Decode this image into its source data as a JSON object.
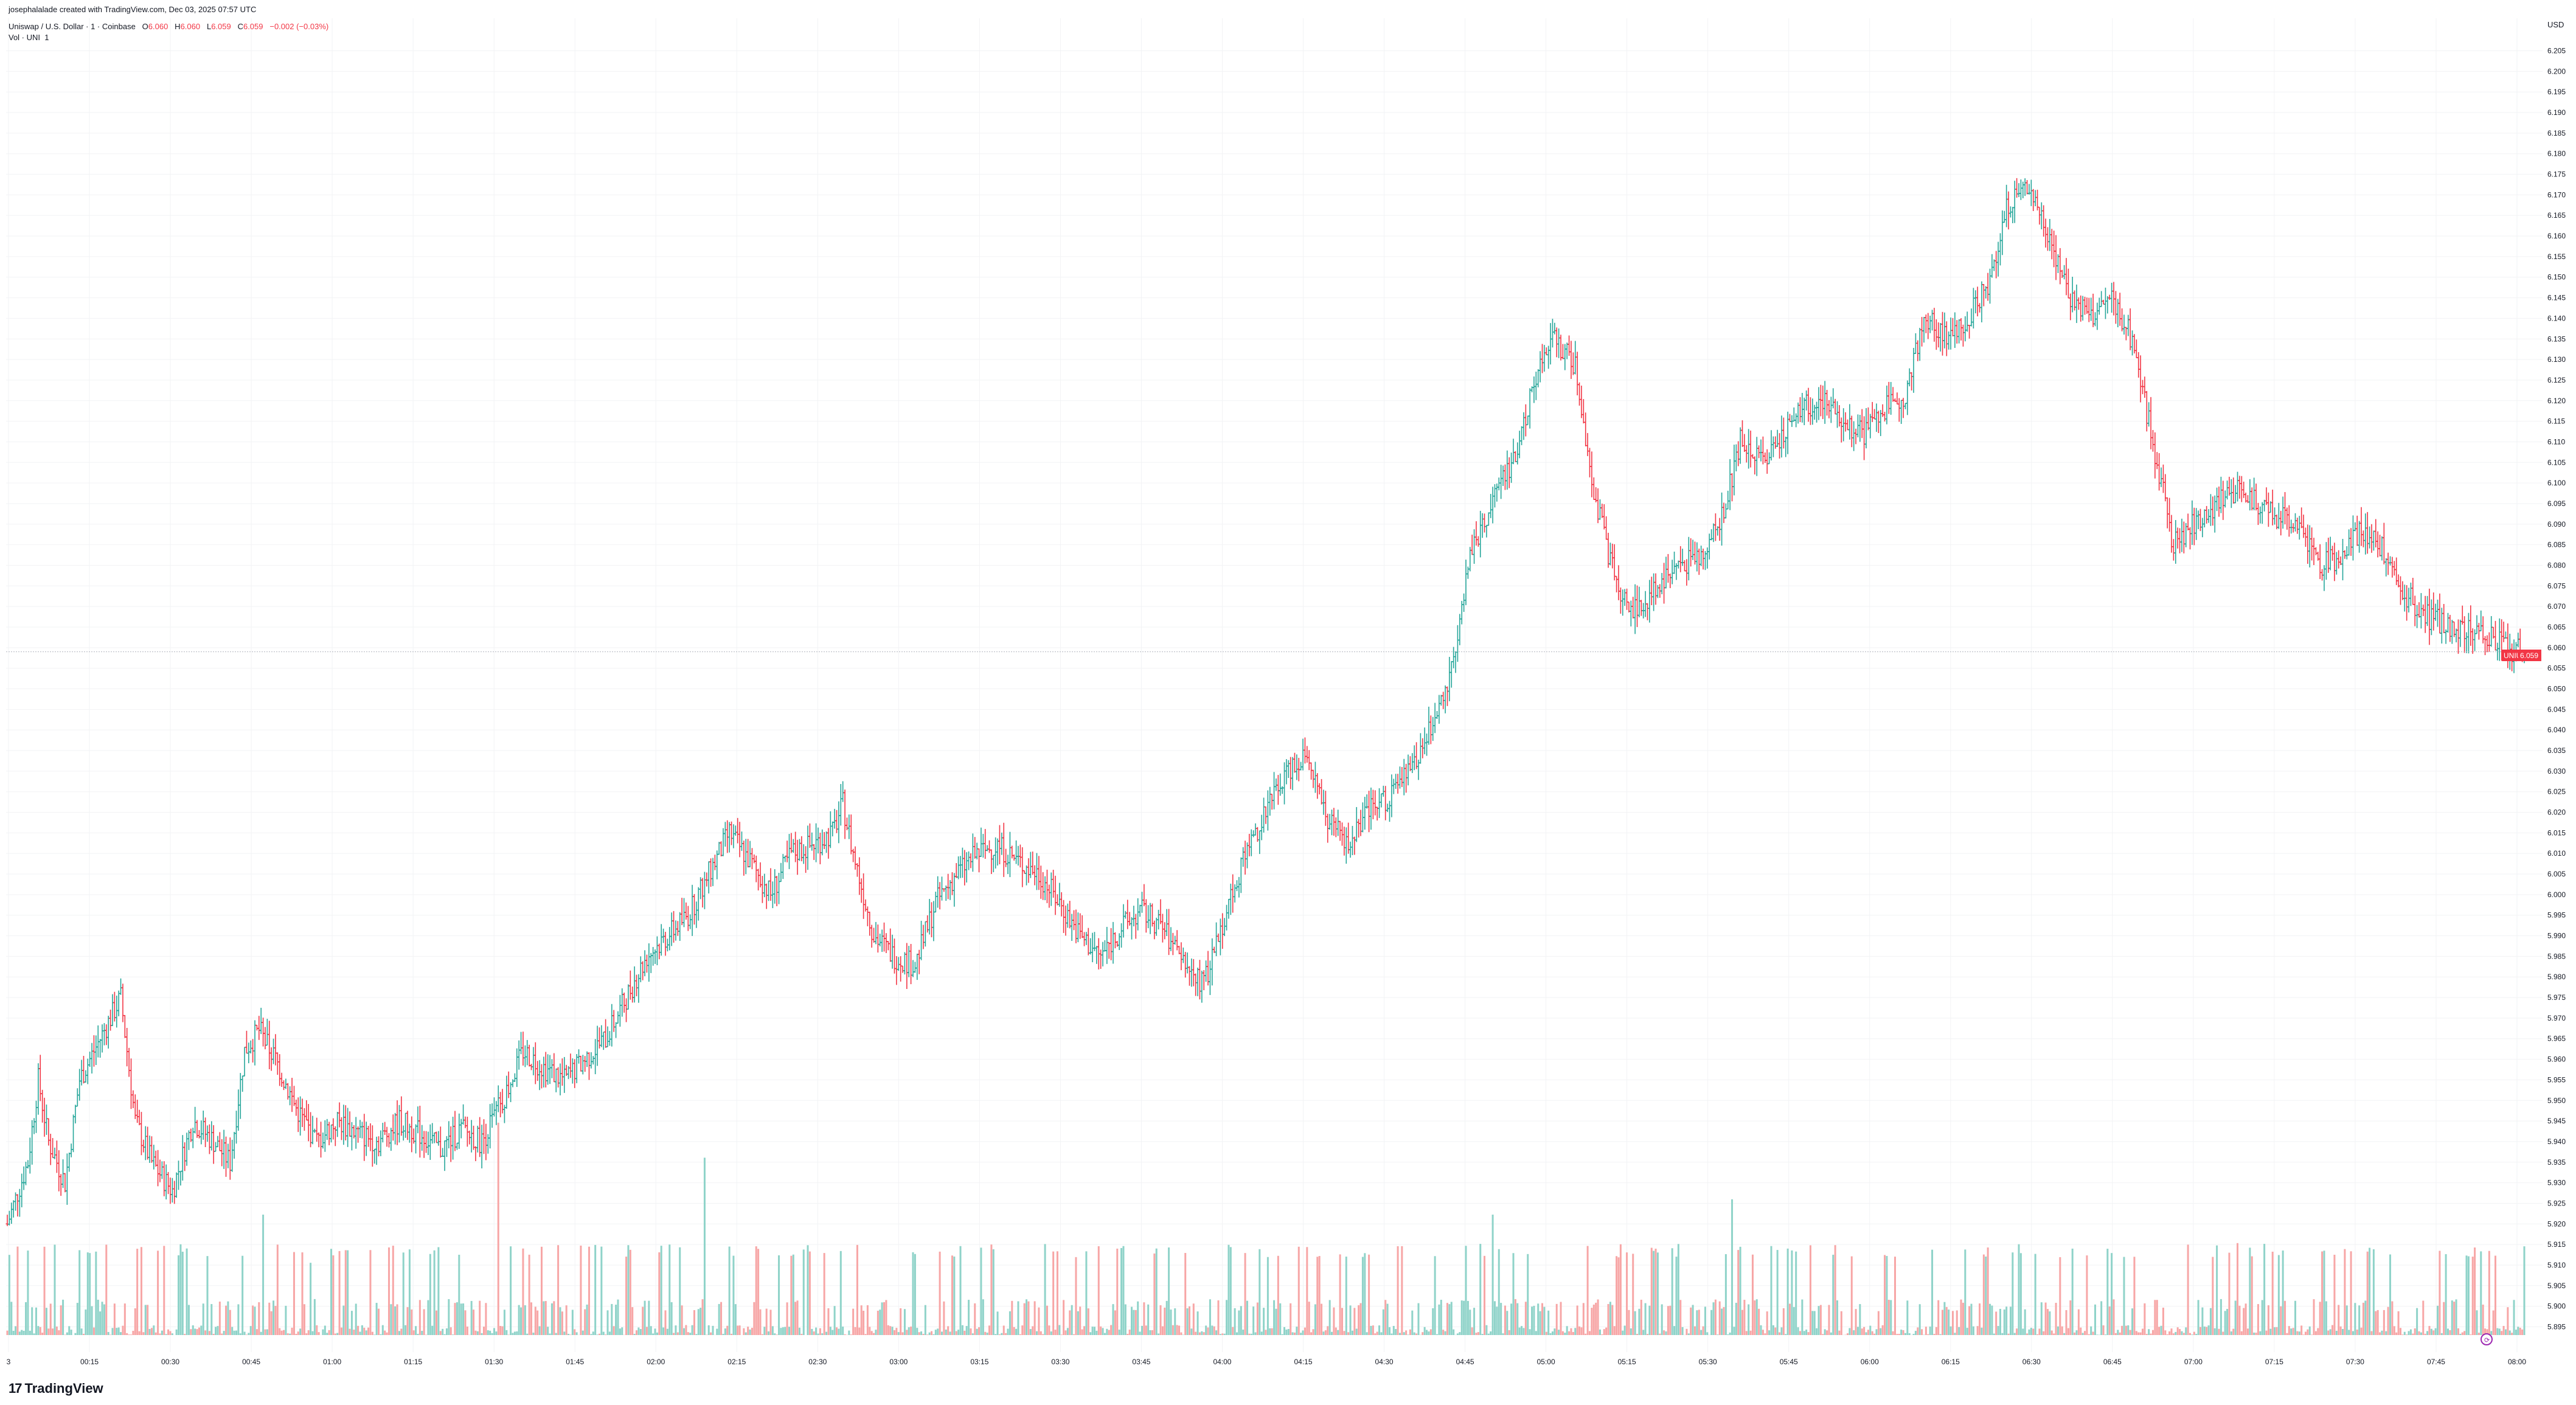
{
  "credit": "josephalalade created with TradingView.com, Dec 03, 2025 07:57 UTC",
  "legend": {
    "symbol": "Uniswap / U.S. Dollar · 1 · Coinbase",
    "o_label": "O",
    "o": "6.060",
    "h_label": "H",
    "h": "6.060",
    "l_label": "L",
    "l": "6.059",
    "c_label": "C",
    "c": "6.059",
    "change": "−0.002 (−0.03%)"
  },
  "volume_label": "Vol · UNI",
  "volume_value": "1",
  "brand": "TradingView",
  "brand_mark": "17",
  "price_tag": {
    "symbol": "UNIUSD",
    "price": "6.059"
  },
  "colors": {
    "up": "#26a69a",
    "down": "#f23645",
    "vol_up": "#8fd3c9",
    "vol_down": "#f7a6a6",
    "grid": "#f2f3f5",
    "text": "#131722"
  },
  "chart_data": {
    "type": "bar",
    "subtype": "ohlc",
    "currency": "USD",
    "y_ticks": [
      "6.205",
      "6.200",
      "6.195",
      "6.190",
      "6.185",
      "6.180",
      "6.175",
      "6.170",
      "6.165",
      "6.160",
      "6.155",
      "6.150",
      "6.145",
      "6.140",
      "6.135",
      "6.130",
      "6.125",
      "6.120",
      "6.115",
      "6.110",
      "6.105",
      "6.100",
      "6.095",
      "6.090",
      "6.085",
      "6.080",
      "6.075",
      "6.070",
      "6.065",
      "6.060",
      "6.055",
      "6.050",
      "6.045",
      "6.040",
      "6.035",
      "6.030",
      "6.025",
      "6.020",
      "6.015",
      "6.010",
      "6.005",
      "6.000",
      "5.995",
      "5.990",
      "5.985",
      "5.980",
      "5.975",
      "5.970",
      "5.965",
      "5.960",
      "5.955",
      "5.950",
      "5.945",
      "5.940",
      "5.935",
      "5.930",
      "5.925",
      "5.920",
      "5.915",
      "5.910",
      "5.905",
      "5.900",
      "5.895"
    ],
    "x_ticks": [
      "3",
      "00:15",
      "00:30",
      "00:45",
      "01:00",
      "01:15",
      "01:30",
      "01:45",
      "02:00",
      "02:15",
      "02:30",
      "03:00",
      "03:15",
      "03:30",
      "03:45",
      "04:00",
      "04:15",
      "04:30",
      "04:45",
      "05:00",
      "05:15",
      "05:30",
      "05:45",
      "06:00",
      "06:15",
      "06:30",
      "06:45",
      "07:00",
      "07:15",
      "07:30",
      "07:45",
      "08:00"
    ],
    "ylim": [
      5.893,
      6.207
    ],
    "last_price": 6.059,
    "grid": true,
    "price_path": [
      [
        0,
        5.92
      ],
      [
        10,
        5.935
      ],
      [
        15,
        5.955
      ],
      [
        20,
        5.94
      ],
      [
        28,
        5.93
      ],
      [
        35,
        5.955
      ],
      [
        45,
        5.965
      ],
      [
        55,
        5.975
      ],
      [
        62,
        5.945
      ],
      [
        70,
        5.935
      ],
      [
        80,
        5.928
      ],
      [
        90,
        5.945
      ],
      [
        100,
        5.94
      ],
      [
        108,
        5.935
      ],
      [
        115,
        5.962
      ],
      [
        122,
        5.967
      ],
      [
        130,
        5.96
      ],
      [
        140,
        5.948
      ],
      [
        150,
        5.94
      ],
      [
        160,
        5.945
      ],
      [
        170,
        5.942
      ],
      [
        180,
        5.94
      ],
      [
        190,
        5.945
      ],
      [
        200,
        5.942
      ],
      [
        210,
        5.938
      ],
      [
        220,
        5.943
      ],
      [
        230,
        5.94
      ],
      [
        240,
        5.95
      ],
      [
        250,
        5.962
      ],
      [
        260,
        5.958
      ],
      [
        270,
        5.955
      ],
      [
        280,
        5.96
      ],
      [
        290,
        5.965
      ],
      [
        300,
        5.975
      ],
      [
        310,
        5.985
      ],
      [
        320,
        5.99
      ],
      [
        330,
        5.995
      ],
      [
        340,
        6.005
      ],
      [
        350,
        6.015
      ],
      [
        360,
        6.008
      ],
      [
        370,
        6.0
      ],
      [
        380,
        6.01
      ],
      [
        390,
        6.012
      ],
      [
        400,
        6.015
      ],
      [
        405,
        6.022
      ],
      [
        410,
        6.01
      ],
      [
        420,
        5.99
      ],
      [
        430,
        5.985
      ],
      [
        440,
        5.983
      ],
      [
        450,
        5.998
      ],
      [
        460,
        6.005
      ],
      [
        470,
        6.01
      ],
      [
        480,
        6.012
      ],
      [
        490,
        6.008
      ],
      [
        500,
        6.005
      ],
      [
        510,
        5.998
      ],
      [
        520,
        5.99
      ],
      [
        530,
        5.985
      ],
      [
        540,
        5.992
      ],
      [
        550,
        5.996
      ],
      [
        560,
        5.992
      ],
      [
        570,
        5.983
      ],
      [
        580,
        5.978
      ],
      [
        590,
        5.995
      ],
      [
        600,
        6.01
      ],
      [
        610,
        6.02
      ],
      [
        620,
        6.03
      ],
      [
        630,
        6.035
      ],
      [
        640,
        6.018
      ],
      [
        650,
        6.012
      ],
      [
        660,
        6.02
      ],
      [
        670,
        6.024
      ],
      [
        680,
        6.03
      ],
      [
        690,
        6.04
      ],
      [
        700,
        6.055
      ],
      [
        710,
        6.085
      ],
      [
        720,
        6.095
      ],
      [
        730,
        6.105
      ],
      [
        740,
        6.125
      ],
      [
        750,
        6.135
      ],
      [
        760,
        6.128
      ],
      [
        770,
        6.095
      ],
      [
        780,
        6.075
      ],
      [
        790,
        6.068
      ],
      [
        800,
        6.075
      ],
      [
        810,
        6.08
      ],
      [
        820,
        6.082
      ],
      [
        830,
        6.09
      ],
      [
        840,
        6.11
      ],
      [
        850,
        6.105
      ],
      [
        860,
        6.112
      ],
      [
        870,
        6.118
      ],
      [
        880,
        6.12
      ],
      [
        890,
        6.115
      ],
      [
        900,
        6.112
      ],
      [
        910,
        6.118
      ],
      [
        920,
        6.122
      ],
      [
        930,
        6.14
      ],
      [
        940,
        6.135
      ],
      [
        950,
        6.14
      ],
      [
        960,
        6.148
      ],
      [
        970,
        6.168
      ],
      [
        980,
        6.172
      ],
      [
        990,
        6.16
      ],
      [
        1000,
        6.145
      ],
      [
        1010,
        6.14
      ],
      [
        1020,
        6.145
      ],
      [
        1030,
        6.135
      ],
      [
        1040,
        6.11
      ],
      [
        1050,
        6.085
      ],
      [
        1060,
        6.09
      ],
      [
        1070,
        6.095
      ],
      [
        1080,
        6.098
      ],
      [
        1090,
        6.095
      ],
      [
        1100,
        6.092
      ],
      [
        1110,
        6.09
      ],
      [
        1120,
        6.08
      ],
      [
        1130,
        6.082
      ],
      [
        1140,
        6.088
      ],
      [
        1150,
        6.085
      ],
      [
        1160,
        6.075
      ],
      [
        1170,
        6.068
      ],
      [
        1180,
        6.066
      ],
      [
        1190,
        6.065
      ],
      [
        1200,
        6.064
      ],
      [
        1210,
        6.06
      ],
      [
        1220,
        6.059
      ]
    ],
    "volume_spikes": [
      {
        "t": 124,
        "v": 55,
        "dir": "up"
      },
      {
        "t": 147,
        "v": 33,
        "dir": "up"
      },
      {
        "t": 238,
        "v": 97,
        "dir": "down"
      },
      {
        "t": 338,
        "v": 81,
        "dir": "up"
      },
      {
        "t": 563,
        "v": 40,
        "dir": "up"
      },
      {
        "t": 720,
        "v": 55,
        "dir": "up"
      },
      {
        "t": 836,
        "v": 62,
        "dir": "up"
      },
      {
        "t": 960,
        "v": 40,
        "dir": "down"
      },
      {
        "t": 1081,
        "v": 42,
        "dir": "down"
      },
      {
        "t": 1196,
        "v": 40,
        "dir": "down"
      }
    ]
  }
}
